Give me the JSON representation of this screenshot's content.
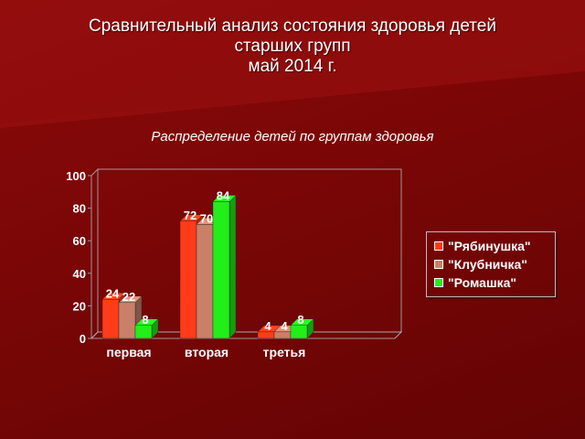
{
  "title": {
    "line1": "Сравнительный анализ состояния здоровья детей",
    "line2": "старших групп",
    "line3": "май 2014 г."
  },
  "chart_data": {
    "type": "bar",
    "title": "Распределение детей по группам здоровья",
    "categories": [
      "первая",
      "вторая",
      "третья"
    ],
    "series": [
      {
        "name": "\"Рябинушка\"",
        "values": [
          24,
          72,
          4
        ],
        "color": "#ff3b1a"
      },
      {
        "name": "\"Клубничка\"",
        "values": [
          22,
          70,
          4
        ],
        "color": "#c98068"
      },
      {
        "name": "\"Ромашка\"",
        "values": [
          8,
          84,
          8
        ],
        "color": "#22ee1a"
      }
    ],
    "ylim": [
      0,
      100
    ],
    "yticks": [
      0,
      20,
      40,
      60,
      80,
      100
    ],
    "grid": false,
    "legend_position": "right",
    "data_labels": true
  }
}
